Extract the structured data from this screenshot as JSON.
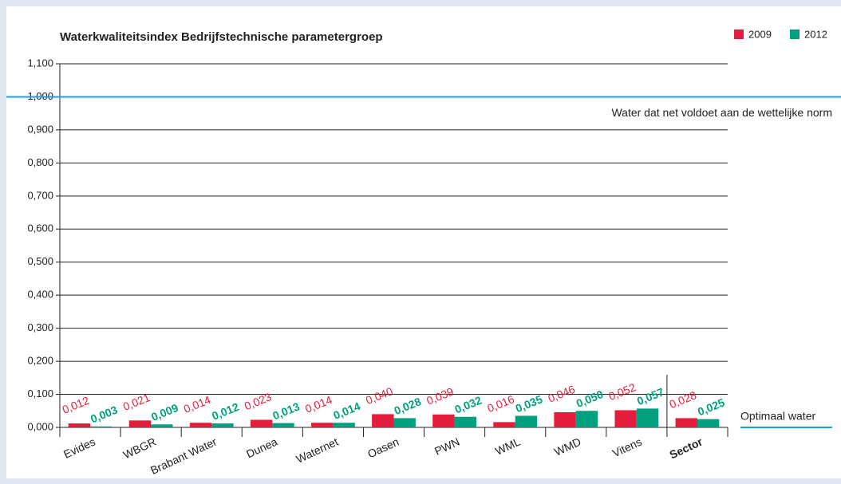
{
  "chart_data": {
    "type": "bar",
    "title": "Waterkwaliteitsindex Bedrijfstechnische parametergroep",
    "categories": [
      "Evides",
      "WBGR",
      "Brabant Water",
      "Dunea",
      "Waternet",
      "Oasen",
      "PWN",
      "WML",
      "WMD",
      "Vitens",
      "Sector"
    ],
    "series": [
      {
        "name": "2009",
        "color": "#e31e3c",
        "values": [
          0.012,
          0.021,
          0.014,
          0.023,
          0.014,
          0.04,
          0.039,
          0.016,
          0.046,
          0.052,
          0.028
        ],
        "value_labels": [
          "0,012",
          "0,021",
          "0,014",
          "0,023",
          "0,014",
          "0,040",
          "0,039",
          "0,016",
          "0,046",
          "0,052",
          "0,028"
        ]
      },
      {
        "name": "2012",
        "color": "#00a07e",
        "values": [
          0.003,
          0.009,
          0.012,
          0.013,
          0.014,
          0.028,
          0.032,
          0.035,
          0.05,
          0.057,
          0.025
        ],
        "value_labels": [
          "0,003",
          "0,009",
          "0,012",
          "0,013",
          "0,014",
          "0,028",
          "0,032",
          "0,035",
          "0,050",
          "0,057",
          "0,025"
        ]
      }
    ],
    "ylim": [
      0,
      1.1
    ],
    "yticks": [
      {
        "value": 0,
        "label": "0,000"
      },
      {
        "value": 0.1,
        "label": "0,100"
      },
      {
        "value": 0.2,
        "label": "0,200"
      },
      {
        "value": 0.3,
        "label": "0,300"
      },
      {
        "value": 0.4,
        "label": "0,400"
      },
      {
        "value": 0.5,
        "label": "0,500"
      },
      {
        "value": 0.6,
        "label": "0,600"
      },
      {
        "value": 0.7,
        "label": "0,700"
      },
      {
        "value": 0.8,
        "label": "0,800"
      },
      {
        "value": 0.9,
        "label": "0,900"
      },
      {
        "value": 1,
        "label": "1,000"
      },
      {
        "value": 1.1,
        "label": "1,100"
      }
    ],
    "grid": true,
    "legend": "top-right",
    "annotations": [
      {
        "text": "Water dat net voldoet aan de wettelijke norm",
        "y": 1,
        "color": "#1aa3d9"
      },
      {
        "text": "Optimaal water",
        "y": 0,
        "color": "#1aa3d9"
      }
    ]
  }
}
